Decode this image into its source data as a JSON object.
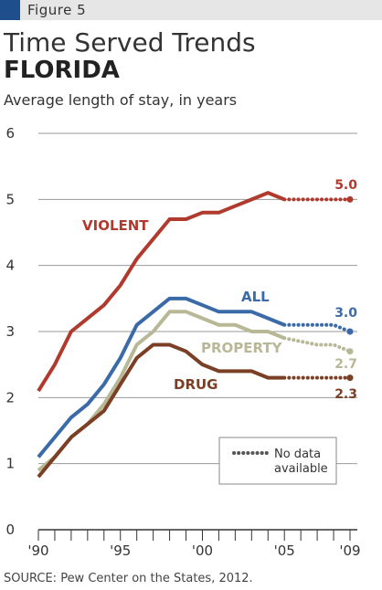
{
  "figure_label": "Figure 5",
  "title": "Time Served Trends",
  "subtitle": "FLORIDA",
  "y_axis_label": "Average length of stay, in years",
  "source": "SOURCE: Pew Center on the States, 2012.",
  "legend": {
    "text_line1": "No data",
    "text_line2": "available"
  },
  "colors": {
    "violent": "#b03a2e",
    "all": "#3a6aa8",
    "property": "#b8b896",
    "drug": "#7a3f25",
    "figure_swatch": "#1f4e8c"
  },
  "chart_data": {
    "type": "line",
    "ylim": [
      0,
      6
    ],
    "xlim": [
      1990,
      2009
    ],
    "y_ticks": [
      "0",
      "1",
      "2",
      "3",
      "4",
      "5",
      "6"
    ],
    "x_tick_labels": [
      {
        "x": 1990,
        "label": "'90"
      },
      {
        "x": 1995,
        "label": "'95"
      },
      {
        "x": 2000,
        "label": "'00"
      },
      {
        "x": 2005,
        "label": "'05"
      },
      {
        "x": 2009,
        "label": "'09"
      }
    ],
    "grid": "horizontal",
    "series": [
      {
        "name": "VIOLENT",
        "key": "violent",
        "end_label": "5.0",
        "x": [
          1990,
          1991,
          1992,
          1993,
          1994,
          1995,
          1996,
          1997,
          1998,
          1999,
          2000,
          2001,
          2002,
          2003,
          2004,
          2005
        ],
        "y": [
          2.1,
          2.5,
          3.0,
          3.2,
          3.4,
          3.7,
          4.1,
          4.4,
          4.7,
          4.7,
          4.8,
          4.8,
          4.9,
          5.0,
          5.1,
          5.0
        ],
        "nodata_x": [
          2005,
          2006,
          2007,
          2008,
          2009
        ],
        "nodata_y": [
          5.0,
          5.0,
          5.0,
          5.0,
          5.0
        ]
      },
      {
        "name": "ALL",
        "key": "all",
        "end_label": "3.0",
        "x": [
          1990,
          1991,
          1992,
          1993,
          1994,
          1995,
          1996,
          1997,
          1998,
          1999,
          2000,
          2001,
          2002,
          2003,
          2004,
          2005
        ],
        "y": [
          1.1,
          1.4,
          1.7,
          1.9,
          2.2,
          2.6,
          3.1,
          3.3,
          3.5,
          3.5,
          3.4,
          3.3,
          3.3,
          3.3,
          3.2,
          3.1
        ],
        "nodata_x": [
          2005,
          2006,
          2007,
          2008,
          2009
        ],
        "nodata_y": [
          3.1,
          3.1,
          3.1,
          3.1,
          3.0
        ]
      },
      {
        "name": "PROPERTY",
        "key": "property",
        "end_label": "2.7",
        "x": [
          1990,
          1991,
          1992,
          1993,
          1994,
          1995,
          1996,
          1997,
          1998,
          1999,
          2000,
          2001,
          2002,
          2003,
          2004,
          2005
        ],
        "y": [
          0.9,
          1.1,
          1.4,
          1.6,
          1.9,
          2.3,
          2.8,
          3.0,
          3.3,
          3.3,
          3.2,
          3.1,
          3.1,
          3.0,
          3.0,
          2.9
        ],
        "nodata_x": [
          2005,
          2006,
          2007,
          2008,
          2009
        ],
        "nodata_y": [
          2.9,
          2.85,
          2.8,
          2.8,
          2.7
        ]
      },
      {
        "name": "DRUG",
        "key": "drug",
        "end_label": "2.3",
        "x": [
          1990,
          1991,
          1992,
          1993,
          1994,
          1995,
          1996,
          1997,
          1998,
          1999,
          2000,
          2001,
          2002,
          2003,
          2004,
          2005
        ],
        "y": [
          0.8,
          1.1,
          1.4,
          1.6,
          1.8,
          2.2,
          2.6,
          2.8,
          2.8,
          2.7,
          2.5,
          2.4,
          2.4,
          2.4,
          2.3,
          2.3
        ],
        "nodata_x": [
          2005,
          2006,
          2007,
          2008,
          2009
        ],
        "nodata_y": [
          2.3,
          2.3,
          2.3,
          2.3,
          2.3
        ]
      }
    ]
  }
}
